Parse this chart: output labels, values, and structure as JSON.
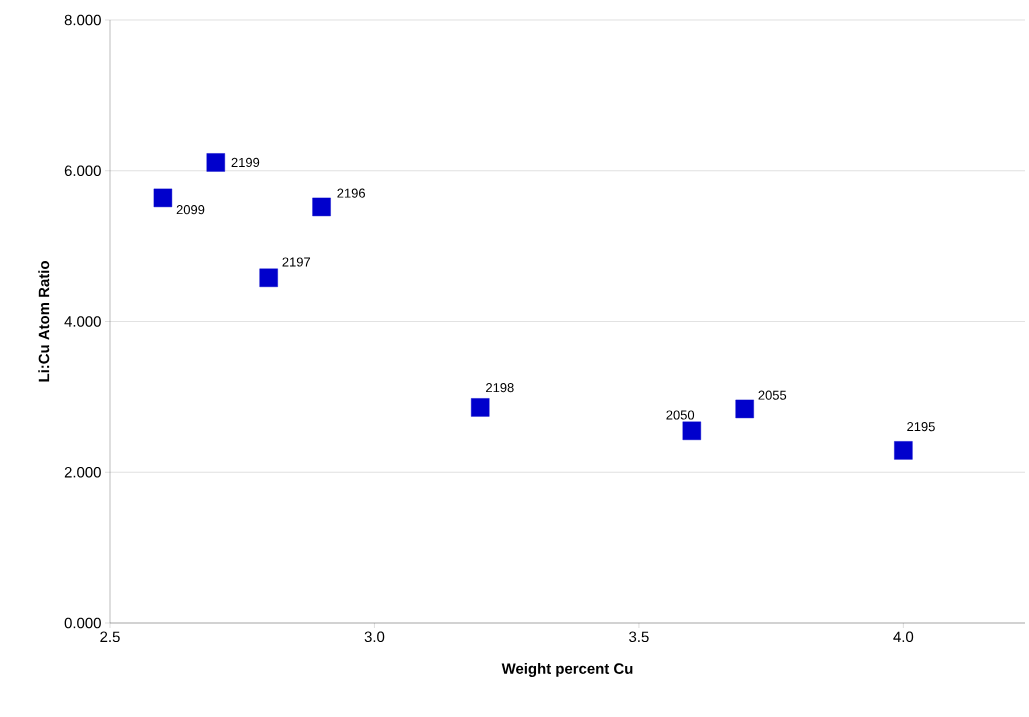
{
  "chart_data": {
    "type": "scatter",
    "xlabel": "Weight percent Cu",
    "ylabel": "Li:Cu Atom Ratio",
    "x": [
      2.6,
      2.7,
      2.9,
      2.8,
      3.2,
      3.6,
      3.7,
      4.0
    ],
    "values": [
      5.64,
      6.11,
      5.52,
      4.58,
      2.86,
      2.55,
      2.84,
      2.29
    ],
    "color": "#0000cc",
    "marker": "square",
    "grid": "y",
    "xlim": [
      2.5,
      4.23
    ],
    "xticks": [
      2.5,
      {
        "value": 3.0,
        "label": "3.0"
      },
      3.5,
      {
        "value": 4.0,
        "label": "4.0"
      }
    ],
    "ylim": [
      0,
      8
    ],
    "yticks": [
      {
        "value": 0,
        "label": "0.000"
      },
      {
        "value": 2,
        "label": "2.000"
      },
      {
        "value": 4,
        "label": "4.000"
      },
      {
        "value": 6,
        "label": "6.000"
      },
      {
        "value": 8,
        "label": "8.000"
      }
    ],
    "annotations": [
      {
        "text": "2099",
        "x": 2.6,
        "y": 5.64
      },
      {
        "text": "2199",
        "x": 2.7,
        "y": 6.11
      },
      {
        "text": "2196",
        "x": 2.9,
        "y": 5.52
      },
      {
        "text": "2197",
        "x": 2.8,
        "y": 4.58
      },
      {
        "text": "2198",
        "x": 3.2,
        "y": 2.86
      },
      {
        "text": "2050",
        "x": 3.6,
        "y": 2.55
      },
      {
        "text": "2055",
        "x": 3.7,
        "y": 2.84
      },
      {
        "text": "2195",
        "x": 4.0,
        "y": 2.29
      }
    ]
  }
}
